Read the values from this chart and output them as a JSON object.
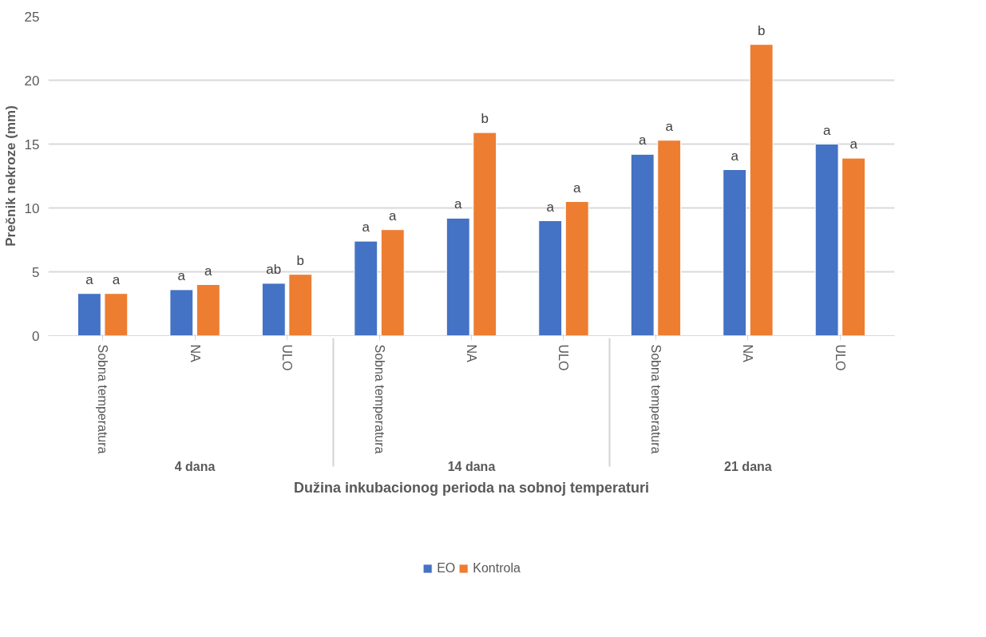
{
  "chart_data": {
    "type": "bar",
    "xlabel": "Dužina inkubacionog perioda na sobnoj temperaturi",
    "ylabel": "Prečnik nekroze (mm)",
    "categories": [
      "Sobna temperatura",
      "NA",
      "ULO",
      "Sobna temperatura",
      "NA",
      "ULO",
      "Sobna temperatura",
      "NA",
      "ULO"
    ],
    "annotations": [
      "4 dana",
      "14 dana",
      "21 dana"
    ],
    "series": [
      {
        "name": "EO",
        "color": "#4472c4",
        "values": [
          3.3,
          3.6,
          4.1,
          7.4,
          9.2,
          9.0,
          14.2,
          13.0,
          15.0
        ],
        "value_labels": [
          "a",
          "a",
          "ab",
          "a",
          "a",
          "a",
          "a",
          "a",
          "a"
        ]
      },
      {
        "name": "Kontrola",
        "color": "#ed7d31",
        "values": [
          3.3,
          4.0,
          4.8,
          8.3,
          15.9,
          10.5,
          15.3,
          22.8,
          13.9
        ],
        "value_labels": [
          "a",
          "a",
          "b",
          "a",
          "b",
          "a",
          "a",
          "b",
          "a"
        ]
      }
    ],
    "ylim": [
      0,
      25
    ],
    "yticks": [
      0,
      5,
      10,
      15,
      20,
      25
    ],
    "grid": "y",
    "legend": "bottom"
  }
}
